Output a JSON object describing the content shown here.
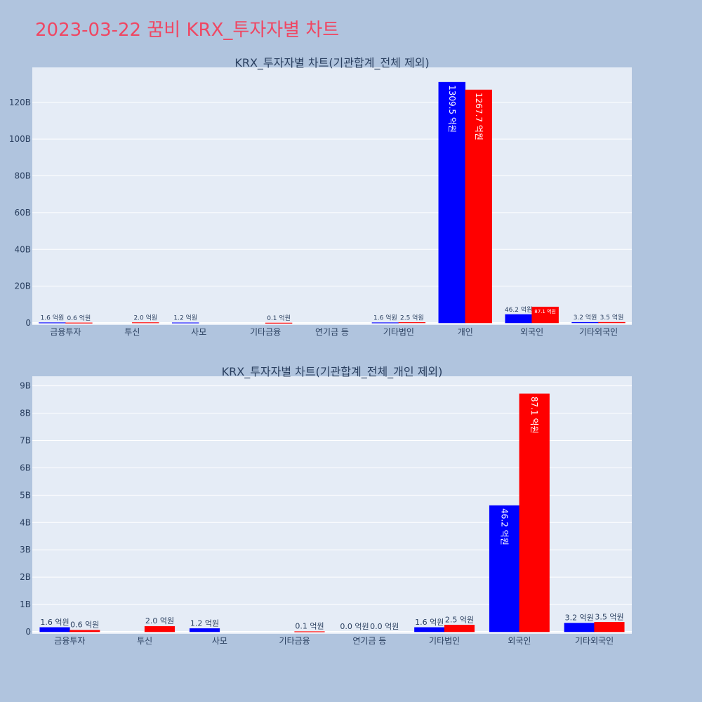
{
  "page": {
    "title": "2023-03-22 꿈비 KRX_투자자별 차트"
  },
  "colors": {
    "buy": "#0000ff",
    "sell": "#ff0000",
    "plot_bg": "#e5ecf6",
    "page_bg": "#b0c4de",
    "title": "#ef4763"
  },
  "chart_data": [
    {
      "type": "bar",
      "title": "KRX_투자자별 차트(기관합계_전체 제외)",
      "categories": [
        "금융투자",
        "투신",
        "사모",
        "기타금융",
        "연기금 등",
        "기타법인",
        "개인",
        "외국인",
        "기타외국인"
      ],
      "series": [
        {
          "values": [
            0.16,
            0,
            0.12,
            0,
            0,
            0.16,
            130.95,
            4.62,
            0.32
          ],
          "labels": [
            "1.6 억원",
            "",
            "1.2 억원",
            "",
            "",
            "1.6 억원",
            "1309.5 억원",
            "46.2 억원",
            "3.2 억원"
          ]
        },
        {
          "values": [
            0.06,
            0.2,
            0,
            0.01,
            0,
            0.25,
            126.77,
            8.71,
            0.35
          ],
          "labels": [
            "0.6 억원",
            "2.0 억원",
            "",
            "0.1 억원",
            "",
            "2.5 억원",
            "1267.7 억원",
            "87.1 억원",
            "3.5 억원"
          ]
        }
      ],
      "yunit": "B",
      "ylim": [
        0,
        139
      ],
      "yticks": [
        0,
        20,
        40,
        60,
        80,
        100,
        120
      ],
      "ytick_labels": [
        "0",
        "20B",
        "40B",
        "60B",
        "80B",
        "100B",
        "120B"
      ],
      "grid": true,
      "legend": "none"
    },
    {
      "type": "bar",
      "title": "KRX_투자자별 차트(기관합계_전체_개인 제외)",
      "categories": [
        "금융투자",
        "투신",
        "사모",
        "기타금융",
        "연기금 등",
        "기타법인",
        "외국인",
        "기타외국인"
      ],
      "series": [
        {
          "values": [
            0.16,
            0,
            0.12,
            0,
            0,
            0.16,
            4.62,
            0.32
          ],
          "labels": [
            "1.6 억원",
            "",
            "1.2 억원",
            "",
            "0.0 억원",
            "1.6 억원",
            "46.2 억원",
            "3.2 억원"
          ]
        },
        {
          "values": [
            0.06,
            0.2,
            0,
            0.01,
            0,
            0.25,
            8.71,
            0.35
          ],
          "labels": [
            "0.6 억원",
            "2.0 억원",
            "",
            "0.1 억원",
            "0.0 억원",
            "2.5 억원",
            "87.1 억원",
            "3.5 억원"
          ]
        }
      ],
      "yunit": "B",
      "ylim": [
        0,
        9.35
      ],
      "yticks": [
        0,
        1,
        2,
        3,
        4,
        5,
        6,
        7,
        8,
        9
      ],
      "ytick_labels": [
        "0",
        "1B",
        "2B",
        "3B",
        "4B",
        "5B",
        "6B",
        "7B",
        "8B",
        "9B"
      ],
      "grid": true,
      "legend": "none"
    }
  ]
}
